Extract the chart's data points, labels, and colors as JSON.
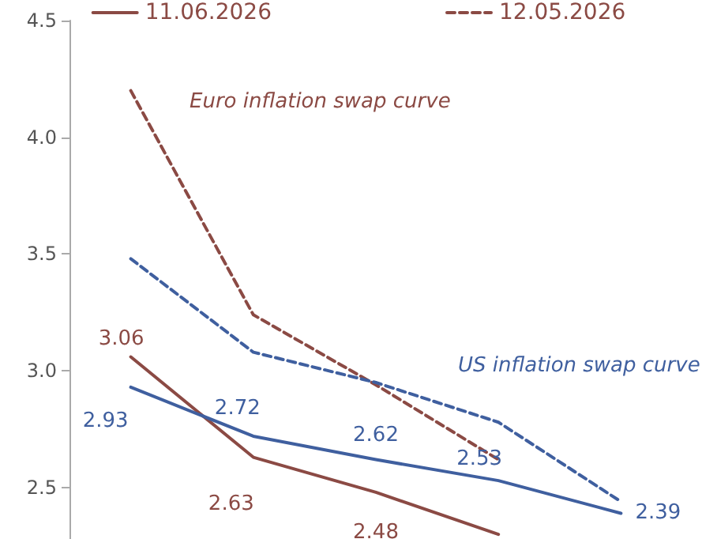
{
  "chart_data": {
    "type": "line",
    "categories": [
      null,
      null,
      null,
      null,
      null
    ],
    "series": [
      {
        "name": "11.06.2026",
        "color": "#8b4a44",
        "line_style": "solid",
        "values": [
          3.06,
          2.63,
          2.48,
          2.3,
          null
        ],
        "value_labels": [
          "3.06",
          "2.63",
          "2.48",
          null,
          null
        ]
      },
      {
        "name": "12.05.2026",
        "color": "#8b4a44",
        "line_style": "dashed",
        "values": [
          4.2,
          3.24,
          2.94,
          2.62,
          null
        ]
      },
      {
        "color": "#3f5f9f",
        "line_style": "solid",
        "values": [
          2.93,
          2.72,
          2.62,
          2.53,
          2.39
        ],
        "value_labels": [
          "2.93",
          "2.72",
          "2.62",
          "2.53",
          "2.39"
        ]
      },
      {
        "color": "#3f5f9f",
        "line_style": "dashed",
        "values": [
          3.48,
          3.08,
          2.95,
          2.78,
          2.44
        ]
      }
    ],
    "ylim": [
      2.28,
      4.5
    ],
    "yticks": [
      2.5,
      {
        "value": 3,
        "label": "3.0"
      },
      3.5,
      {
        "value": 4,
        "label": "4.0"
      },
      4.5
    ],
    "grid": false,
    "legend": "top",
    "marker": "none",
    "tick_labels": "y",
    "annotations": [
      "Euro inflation swap curve",
      "US inflation swap curve"
    ]
  }
}
